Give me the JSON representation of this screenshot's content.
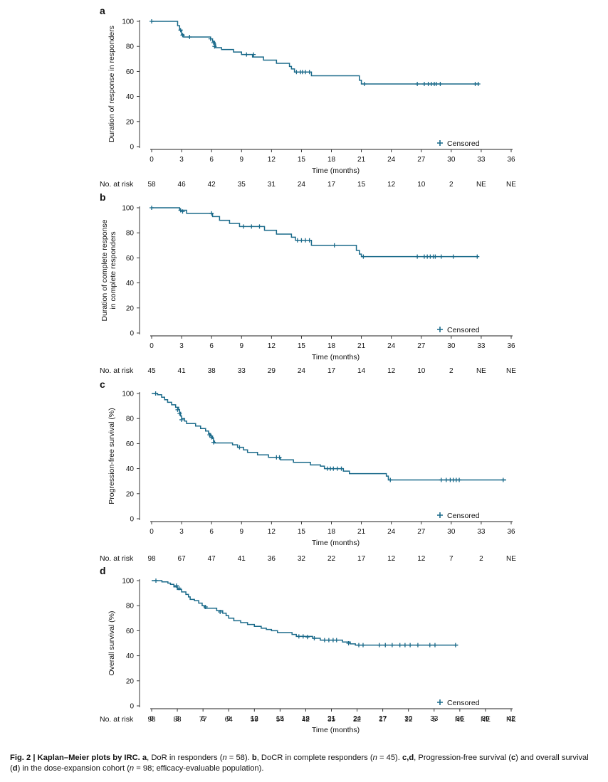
{
  "chart_data": [
    {
      "type": "line",
      "panel_letter": "a",
      "ylabel": "Duration of response in responders",
      "xlabel": "Time (months)",
      "ylim": [
        0,
        100
      ],
      "xlim": [
        0,
        36
      ],
      "yticks": [
        "0",
        "20",
        "40",
        "60",
        "80",
        "100"
      ],
      "xticks": [
        "0",
        "3",
        "6",
        "9",
        "12",
        "15",
        "18",
        "21",
        "24",
        "27",
        "30",
        "33",
        "36"
      ],
      "legend_label": "Censored",
      "legend_position": "bottom-right",
      "risk_label": "No. at risk",
      "at_risk": [
        "58",
        "46",
        "42",
        "35",
        "31",
        "24",
        "17",
        "15",
        "12",
        "10",
        "2",
        "NE",
        "NE"
      ],
      "series": [
        {
          "name": "Kaplan-Meier estimate",
          "color": "#1a6a8a",
          "steps": [
            [
              0,
              100
            ],
            [
              2.6,
              96.5
            ],
            [
              2.8,
              93
            ],
            [
              3.0,
              89.5
            ],
            [
              3.2,
              87.5
            ],
            [
              5.9,
              86
            ],
            [
              6.1,
              84
            ],
            [
              6.3,
              82
            ],
            [
              6.4,
              79
            ],
            [
              7.0,
              77.5
            ],
            [
              8.2,
              75.5
            ],
            [
              9.0,
              73.5
            ],
            [
              10.1,
              71.5
            ],
            [
              11.2,
              69
            ],
            [
              12.5,
              66.5
            ],
            [
              13.8,
              64
            ],
            [
              14.0,
              62
            ],
            [
              14.3,
              59.5
            ],
            [
              16.0,
              56.5
            ],
            [
              20.8,
              53
            ],
            [
              21.0,
              50
            ],
            [
              32.8,
              50
            ]
          ],
          "censored": [
            [
              0,
              100
            ],
            [
              2.9,
              93
            ],
            [
              3.1,
              89
            ],
            [
              3.8,
              87.5
            ],
            [
              5.9,
              86
            ],
            [
              6.2,
              83
            ],
            [
              6.3,
              80
            ],
            [
              9.5,
              73.5
            ],
            [
              10.2,
              73.5
            ],
            [
              14.5,
              59.5
            ],
            [
              14.9,
              59.5
            ],
            [
              15.1,
              59.5
            ],
            [
              15.4,
              59.5
            ],
            [
              15.8,
              59.5
            ],
            [
              21.3,
              50
            ],
            [
              26.6,
              50
            ],
            [
              27.3,
              50
            ],
            [
              27.7,
              50
            ],
            [
              28.0,
              50
            ],
            [
              28.3,
              50
            ],
            [
              28.5,
              50
            ],
            [
              28.9,
              50
            ],
            [
              32.4,
              50
            ],
            [
              32.7,
              50
            ]
          ]
        }
      ]
    },
    {
      "type": "line",
      "panel_letter": "b",
      "ylabel": "Duration of complete response in complete responders",
      "xlabel": "Time (months)",
      "ylim": [
        0,
        100
      ],
      "xlim": [
        0,
        36
      ],
      "yticks": [
        "0",
        "20",
        "40",
        "60",
        "80",
        "100"
      ],
      "xticks": [
        "0",
        "3",
        "6",
        "9",
        "12",
        "15",
        "18",
        "21",
        "24",
        "27",
        "30",
        "33",
        "36"
      ],
      "legend_label": "Censored",
      "legend_position": "bottom-right",
      "risk_label": "No. at risk",
      "at_risk": [
        "45",
        "41",
        "38",
        "33",
        "29",
        "24",
        "17",
        "14",
        "12",
        "10",
        "2",
        "NE",
        "NE"
      ],
      "series": [
        {
          "name": "Kaplan-Meier estimate",
          "color": "#1a6a8a",
          "steps": [
            [
              0,
              100
            ],
            [
              2.8,
              98
            ],
            [
              3.5,
              95.5
            ],
            [
              6.1,
              93
            ],
            [
              6.8,
              90
            ],
            [
              7.8,
              87.5
            ],
            [
              8.8,
              85
            ],
            [
              11.3,
              82
            ],
            [
              12.5,
              79
            ],
            [
              14.0,
              76.5
            ],
            [
              14.4,
              74
            ],
            [
              16.0,
              70
            ],
            [
              20.5,
              66
            ],
            [
              20.8,
              63
            ],
            [
              21.0,
              61
            ],
            [
              32.7,
              61
            ]
          ],
          "censored": [
            [
              0,
              100
            ],
            [
              2.9,
              98
            ],
            [
              3.1,
              97
            ],
            [
              6.0,
              95.5
            ],
            [
              9.2,
              85
            ],
            [
              10.0,
              85
            ],
            [
              10.8,
              85
            ],
            [
              14.6,
              74
            ],
            [
              15.0,
              74
            ],
            [
              15.4,
              74
            ],
            [
              15.8,
              74
            ],
            [
              18.3,
              70
            ],
            [
              21.2,
              61
            ],
            [
              26.6,
              61
            ],
            [
              27.3,
              61
            ],
            [
              27.6,
              61
            ],
            [
              27.9,
              61
            ],
            [
              28.2,
              61
            ],
            [
              28.4,
              61
            ],
            [
              29.0,
              61
            ],
            [
              30.2,
              61
            ],
            [
              32.6,
              61
            ]
          ]
        }
      ]
    },
    {
      "type": "line",
      "panel_letter": "c",
      "ylabel": "Progression-free survival (%)",
      "xlabel": "Time (months)",
      "ylim": [
        0,
        100
      ],
      "xlim": [
        0,
        36
      ],
      "yticks": [
        "0",
        "20",
        "40",
        "60",
        "80",
        "100"
      ],
      "xticks": [
        "0",
        "3",
        "6",
        "9",
        "12",
        "15",
        "18",
        "21",
        "24",
        "27",
        "30",
        "33",
        "36"
      ],
      "legend_label": "Censored",
      "legend_position": "bottom-right",
      "risk_label": "No. at risk",
      "at_risk": [
        "98",
        "67",
        "47",
        "41",
        "36",
        "32",
        "22",
        "17",
        "12",
        "12",
        "7",
        "2",
        "NE"
      ],
      "series": [
        {
          "name": "Kaplan-Meier estimate",
          "color": "#1a6a8a",
          "steps": [
            [
              0,
              100
            ],
            [
              0.6,
              99
            ],
            [
              1.0,
              97
            ],
            [
              1.3,
              95
            ],
            [
              1.6,
              93
            ],
            [
              2.0,
              91
            ],
            [
              2.4,
              89
            ],
            [
              2.7,
              87
            ],
            [
              2.8,
              85
            ],
            [
              2.9,
              82
            ],
            [
              3.0,
              80
            ],
            [
              3.3,
              78
            ],
            [
              3.5,
              76
            ],
            [
              4.4,
              74
            ],
            [
              4.9,
              72
            ],
            [
              5.4,
              70
            ],
            [
              5.7,
              68
            ],
            [
              5.9,
              66
            ],
            [
              6.1,
              64
            ],
            [
              6.2,
              62
            ],
            [
              6.3,
              60.5
            ],
            [
              8.1,
              59
            ],
            [
              8.6,
              57
            ],
            [
              9.2,
              55
            ],
            [
              9.6,
              53
            ],
            [
              10.6,
              51
            ],
            [
              11.7,
              49
            ],
            [
              12.9,
              47
            ],
            [
              14.2,
              45
            ],
            [
              15.9,
              43
            ],
            [
              16.9,
              42
            ],
            [
              17.3,
              40
            ],
            [
              19.2,
              38
            ],
            [
              19.8,
              36
            ],
            [
              23.5,
              34
            ],
            [
              23.7,
              31
            ],
            [
              35.5,
              31
            ]
          ],
          "censored": [
            [
              0.4,
              100
            ],
            [
              2.6,
              87
            ],
            [
              2.8,
              84
            ],
            [
              3.0,
              79
            ],
            [
              5.8,
              67
            ],
            [
              6.0,
              65
            ],
            [
              6.2,
              61
            ],
            [
              8.8,
              57
            ],
            [
              12.5,
              49
            ],
            [
              12.8,
              49
            ],
            [
              17.6,
              40
            ],
            [
              17.9,
              40
            ],
            [
              18.2,
              40
            ],
            [
              18.6,
              40
            ],
            [
              19.0,
              40
            ],
            [
              23.9,
              31
            ],
            [
              29.0,
              31
            ],
            [
              29.5,
              31
            ],
            [
              29.9,
              31
            ],
            [
              30.2,
              31
            ],
            [
              30.5,
              31
            ],
            [
              30.8,
              31
            ],
            [
              35.2,
              31
            ]
          ]
        }
      ]
    },
    {
      "type": "line",
      "panel_letter": "d",
      "ylabel": "Overall survival (%)",
      "xlabel": "Time (months)",
      "ylim": [
        0,
        100
      ],
      "xlim": [
        0,
        42
      ],
      "yticks": [
        "0",
        "20",
        "40",
        "60",
        "80",
        "100"
      ],
      "xticks": [
        "0",
        "3",
        "6",
        "9",
        "12",
        "15",
        "18",
        "21",
        "24",
        "27",
        "30",
        "33",
        "36",
        "39",
        "42"
      ],
      "legend_label": "Censored",
      "legend_position": "bottom-right",
      "risk_label": "No. at risk",
      "at_risk": [
        "98",
        "88",
        "77",
        "64",
        "59",
        "54",
        "42",
        "35",
        "22",
        "17",
        "12",
        "5",
        "NE",
        "NE",
        "NE"
      ],
      "series": [
        {
          "name": "Kaplan-Meier estimate",
          "color": "#1a6a8a",
          "steps": [
            [
              0,
              100
            ],
            [
              1.2,
              99
            ],
            [
              1.9,
              98
            ],
            [
              2.2,
              97
            ],
            [
              2.6,
              95
            ],
            [
              3.0,
              93
            ],
            [
              3.5,
              91
            ],
            [
              4.0,
              89
            ],
            [
              4.3,
              87
            ],
            [
              4.5,
              85
            ],
            [
              5.0,
              84
            ],
            [
              5.5,
              82
            ],
            [
              5.9,
              80
            ],
            [
              6.2,
              78
            ],
            [
              7.6,
              76
            ],
            [
              8.3,
              74
            ],
            [
              8.7,
              72
            ],
            [
              9.0,
              70
            ],
            [
              9.6,
              68
            ],
            [
              10.4,
              66.5
            ],
            [
              11.2,
              65
            ],
            [
              12.0,
              63.5
            ],
            [
              12.8,
              62
            ],
            [
              13.4,
              61
            ],
            [
              14.0,
              60
            ],
            [
              14.7,
              58.5
            ],
            [
              16.4,
              57
            ],
            [
              16.9,
              55.5
            ],
            [
              18.8,
              54
            ],
            [
              19.7,
              52.5
            ],
            [
              22.3,
              51
            ],
            [
              23.2,
              49.5
            ],
            [
              23.8,
              48.5
            ],
            [
              35.8,
              48.5
            ]
          ],
          "censored": [
            [
              0.5,
              100
            ],
            [
              2.9,
              96
            ],
            [
              3.2,
              94
            ],
            [
              6.3,
              79
            ],
            [
              8.0,
              75
            ],
            [
              17.2,
              55.5
            ],
            [
              17.7,
              55.5
            ],
            [
              18.2,
              55
            ],
            [
              19.0,
              54
            ],
            [
              20.2,
              52.5
            ],
            [
              20.7,
              52.5
            ],
            [
              21.2,
              52.5
            ],
            [
              21.6,
              52.5
            ],
            [
              23.0,
              50
            ],
            [
              24.2,
              48.5
            ],
            [
              24.7,
              48.5
            ],
            [
              26.6,
              48.5
            ],
            [
              27.3,
              48.5
            ],
            [
              28.1,
              48.5
            ],
            [
              29.0,
              48.5
            ],
            [
              29.6,
              48.5
            ],
            [
              30.2,
              48.5
            ],
            [
              31.1,
              48.5
            ],
            [
              32.5,
              48.5
            ],
            [
              33.1,
              48.5
            ],
            [
              35.5,
              48.5
            ]
          ]
        }
      ]
    }
  ],
  "caption": {
    "label": "Fig. 2 | Kaplan–Meier plots by IRC.",
    "a_letter": "a",
    "a_text": ", DoR in responders (",
    "a_n": "n",
    "a_tail": " = 58). ",
    "b_letter": "b",
    "b_text": ", DoCR in complete responders (",
    "b_n": "n",
    "b_tail": " = 45). ",
    "cd_letter": "c,d",
    "cd_text": ", Progression-free survival (",
    "c_letter": "c",
    "cd_mid": ") and overall survival (",
    "d_letter": "d",
    "cd_tail": ") in the dose-expansion cohort (",
    "e_n": "n",
    "e_tail": " = 98; efficacy-evaluable population)."
  }
}
